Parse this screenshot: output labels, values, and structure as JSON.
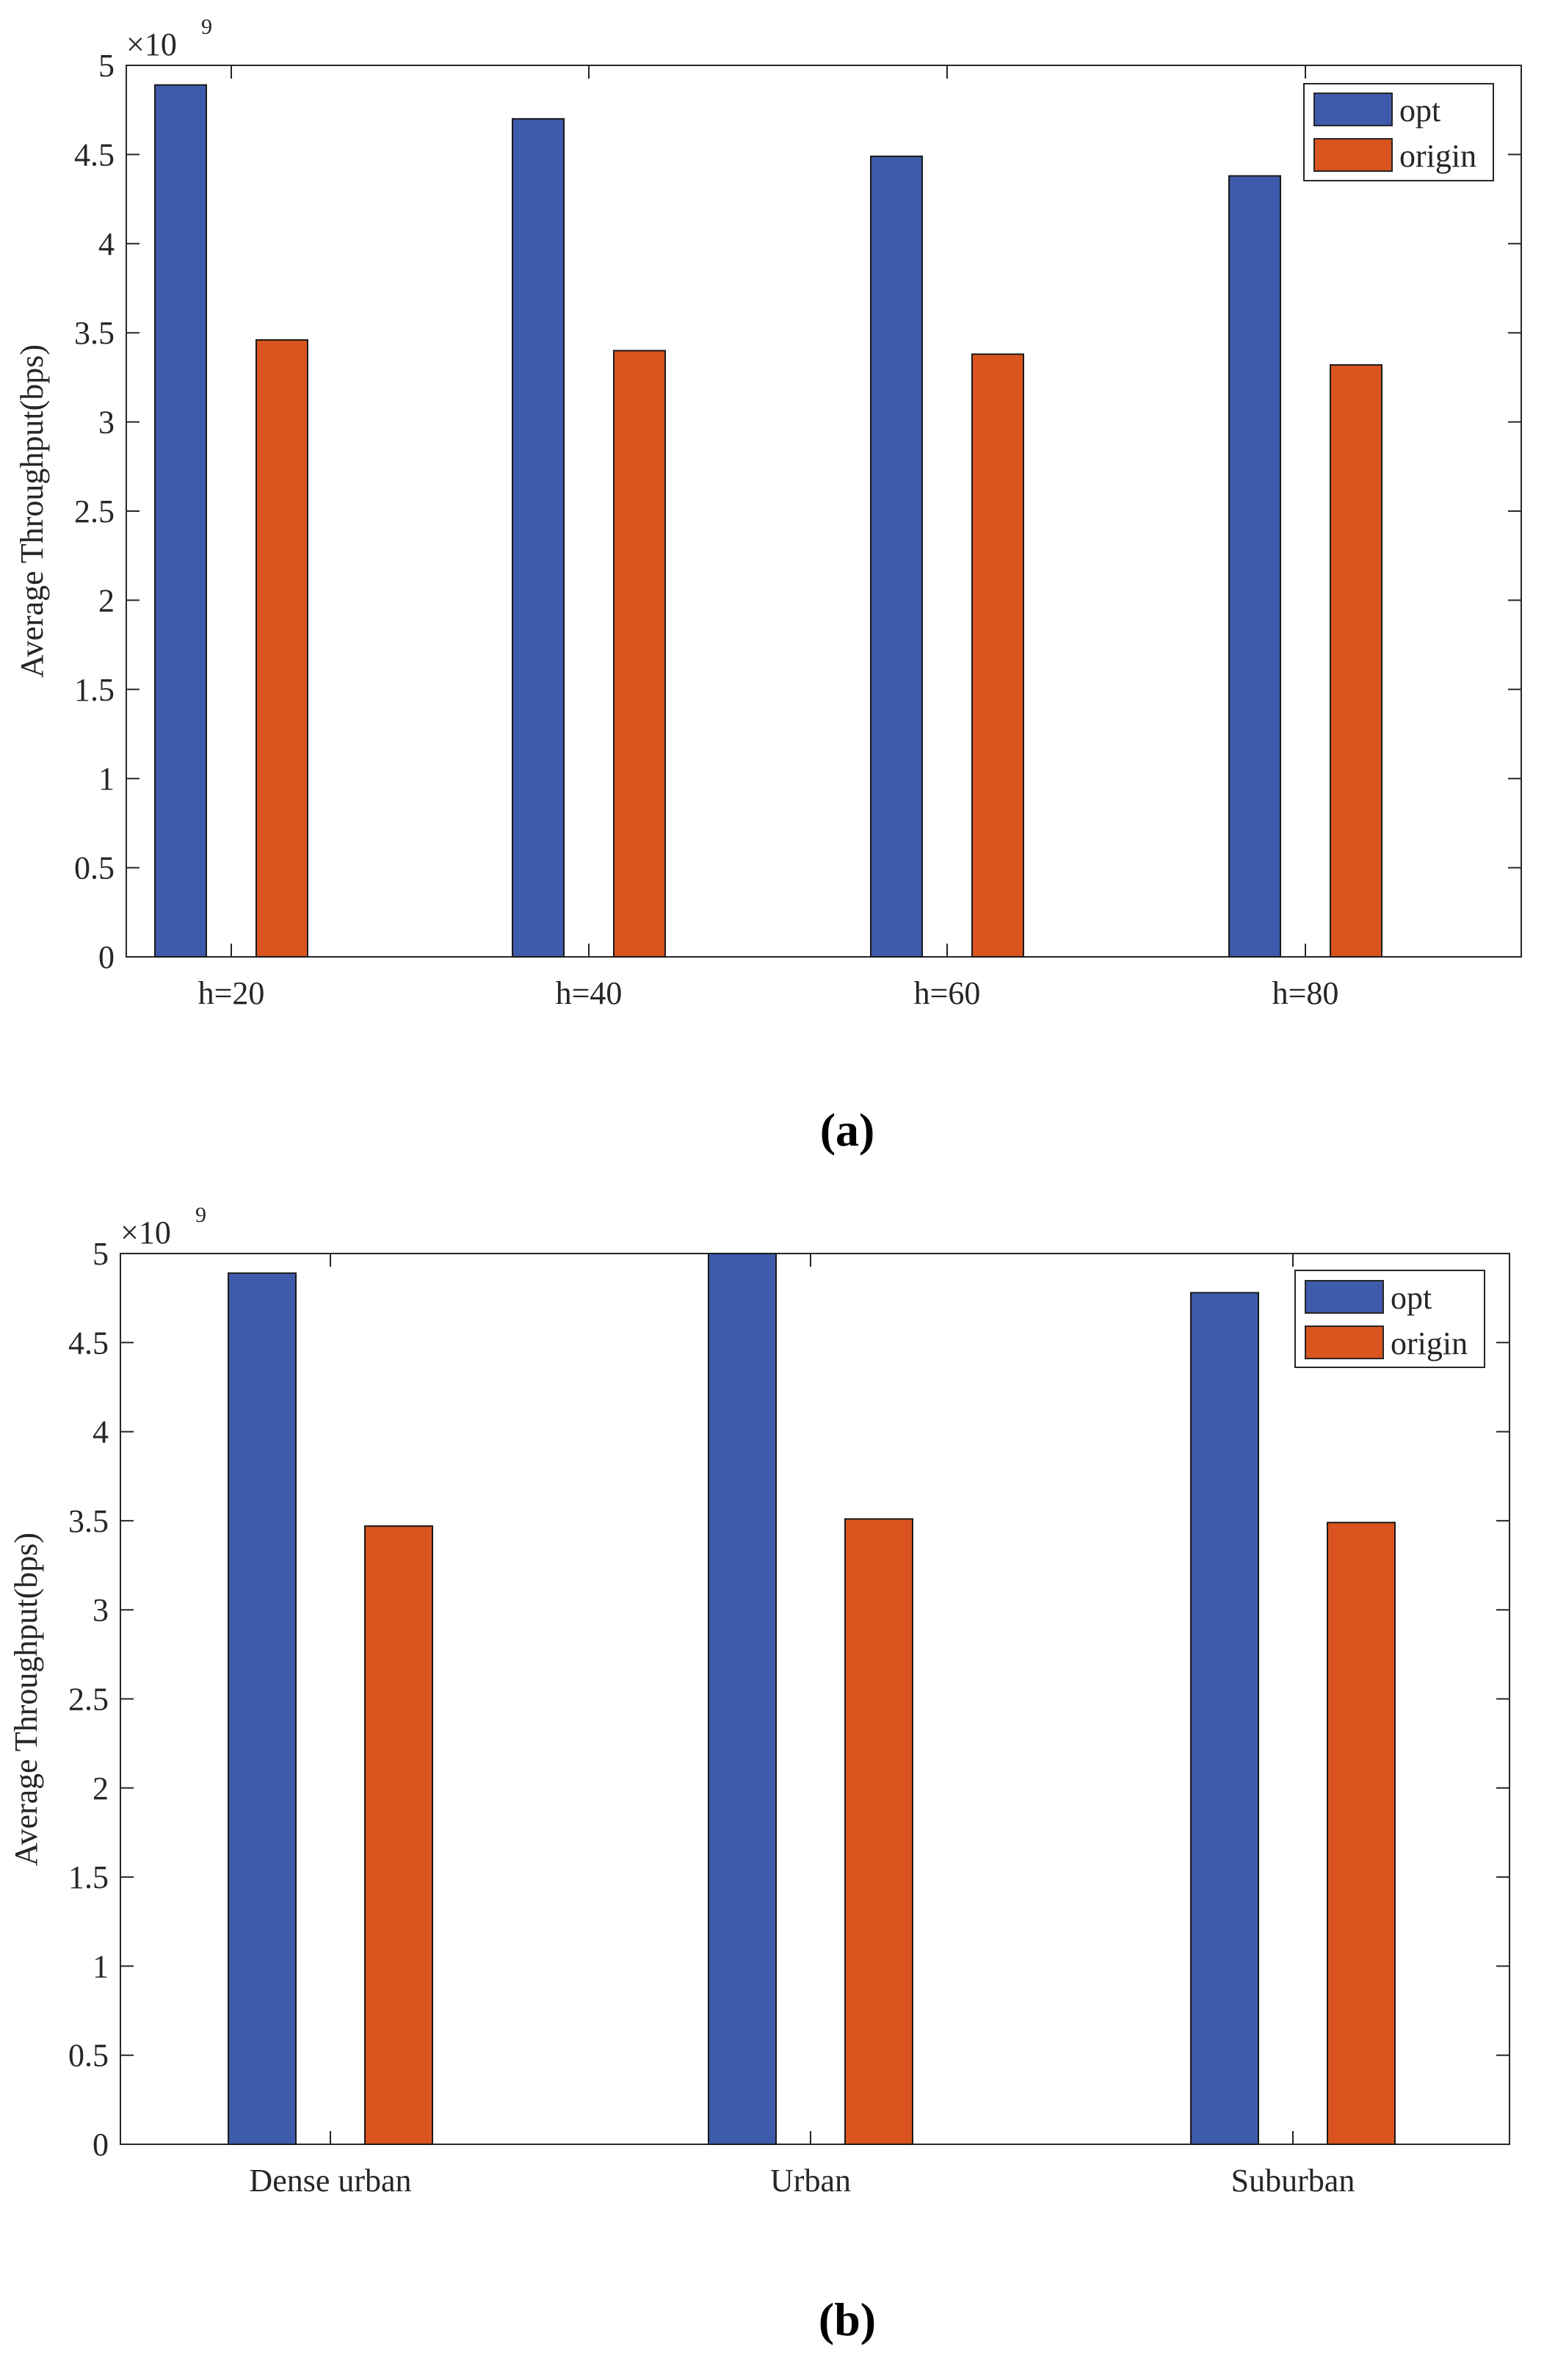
{
  "chart_data": [
    {
      "type": "bar",
      "caption": "(a)",
      "multiplier": "×10",
      "multiplier_exp": "9",
      "ylabel": "Average Throughput(bps)",
      "ylim": [
        0,
        5
      ],
      "yticks": [
        "0",
        "0.5",
        "1",
        "1.5",
        "2",
        "2.5",
        "3",
        "3.5",
        "4",
        "4.5",
        "5"
      ],
      "categories": [
        "h=20",
        "h=40",
        "h=60",
        "h=80"
      ],
      "series": [
        {
          "name": "opt",
          "color": "#3e5aab",
          "values": [
            4.89,
            4.7,
            4.49,
            4.38
          ]
        },
        {
          "name": "origin",
          "color": "#d9541e",
          "values": [
            3.46,
            3.4,
            3.38,
            3.32
          ]
        }
      ],
      "legend_position": "top-right"
    },
    {
      "type": "bar",
      "caption": "(b)",
      "multiplier": "×10",
      "multiplier_exp": "9",
      "ylabel": "Average Throughput(bps)",
      "ylim": [
        0,
        5
      ],
      "yticks": [
        "0",
        "0.5",
        "1",
        "1.5",
        "2",
        "2.5",
        "3",
        "3.5",
        "4",
        "4.5",
        "5"
      ],
      "categories": [
        "Dense urban",
        "Urban",
        "Suburban"
      ],
      "series": [
        {
          "name": "opt",
          "color": "#3e5aab",
          "values": [
            4.89,
            5.0,
            4.78
          ]
        },
        {
          "name": "origin",
          "color": "#d9541e",
          "values": [
            3.47,
            3.51,
            3.49
          ]
        }
      ],
      "legend_position": "top-right"
    }
  ]
}
